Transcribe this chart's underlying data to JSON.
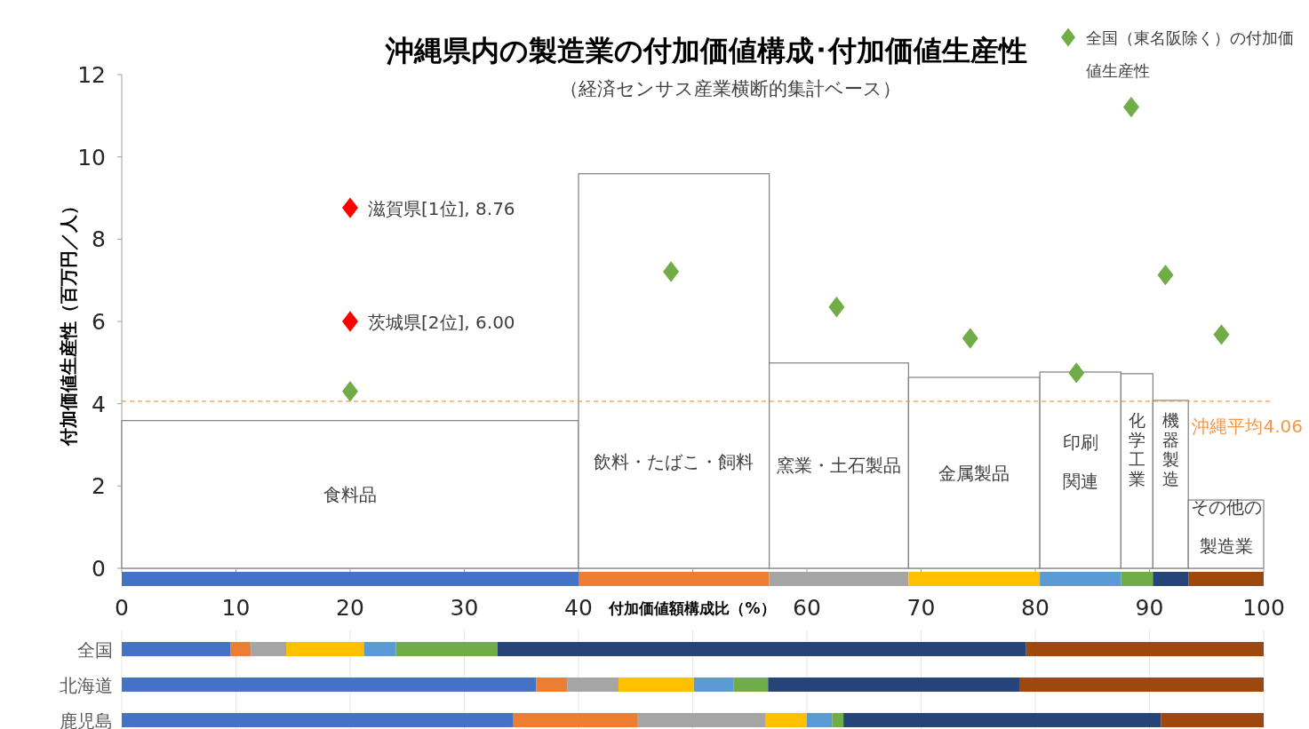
{
  "chart_data": [
    {
      "type": "histogram",
      "title": "沖縄県内の製造業の付加価値構成･付加価値生産性",
      "subtitle": "（経済センサス産業横断的集計ベース）",
      "ylabel": "付加価値生産性（百万円／人）",
      "bins": [
        0,
        40,
        56.7,
        68.9,
        80.4,
        87.5,
        90.3,
        93.4,
        100
      ],
      "values": [
        3.59,
        9.59,
        4.99,
        4.64,
        4.77,
        4.73,
        4.08,
        1.66
      ],
      "categories": [
        "食料品",
        "飲料・たばこ・飼料",
        "窯業・土石製品",
        "金属製品",
        "印刷関連",
        "化学工業",
        "機器製造",
        "その他の製造業"
      ],
      "color": "#ffffff",
      "series": [
        {
          "type": "scatter",
          "name": "全国（東名阪除く）の付加価値生産性",
          "color": "#70ad47",
          "x": [
            20,
            48.1,
            62.6,
            74.3,
            83.6,
            88.4,
            91.4,
            96.3
          ],
          "values": [
            4.3,
            7.21,
            6.35,
            5.59,
            4.75,
            11.21,
            7.13,
            5.68
          ]
        },
        {
          "type": "scatter",
          "color": "#ff0000",
          "x": [
            20,
            20
          ],
          "values": [
            8.76,
            6.0
          ],
          "value_labels": [
            "滋賀県[1位], 8.76",
            "茨城県[2位], 6.00"
          ]
        }
      ],
      "marker": "diamond",
      "ref_lines": [
        {
          "axis": "y",
          "value": 4.06,
          "label": "沖縄平均4.06",
          "color": "#f79646",
          "line_style": "dashed"
        }
      ],
      "xlim": [
        0,
        100
      ],
      "ylim": [
        0,
        12
      ],
      "yticks": [
        0,
        2,
        4,
        6,
        8,
        10,
        12
      ],
      "tick_labels": "y",
      "legend": "top right"
    },
    {
      "type": "bar",
      "orientation": "horizontal",
      "stacked": true,
      "xlabel": "付加価値額構成比（%）",
      "categories": [
        null
      ],
      "series": [
        {
          "color": "#4472c4",
          "values": [
            40
          ]
        },
        {
          "color": "#ed7d31",
          "values": [
            16.7
          ]
        },
        {
          "color": "#a5a5a5",
          "values": [
            12.2
          ]
        },
        {
          "color": "#ffc000",
          "values": [
            11.5
          ]
        },
        {
          "color": "#5b9bd5",
          "values": [
            7.1
          ]
        },
        {
          "color": "#70ad47",
          "values": [
            2.8
          ]
        },
        {
          "color": "#264478",
          "values": [
            3.1
          ]
        },
        {
          "color": "#9e480e",
          "values": [
            6.6
          ]
        }
      ],
      "xlim": [
        0,
        100
      ],
      "xticks": [
        0,
        10,
        20,
        30,
        40,
        {
          "value": 50,
          "label": null
        },
        60,
        70,
        80,
        90,
        100
      ],
      "tick_labels": "x"
    },
    {
      "type": "bar",
      "orientation": "horizontal",
      "stacked": true,
      "categories": [
        "全国",
        "北海道",
        "鹿児島"
      ],
      "series": [
        {
          "color": "#4472c4",
          "values": [
            9.5,
            36.3,
            34.3
          ]
        },
        {
          "color": "#ed7d31",
          "values": [
            1.8,
            2.7,
            10.9
          ]
        },
        {
          "color": "#a5a5a5",
          "values": [
            3.1,
            4.5,
            11.2
          ]
        },
        {
          "color": "#ffc000",
          "values": [
            6.8,
            6.6,
            3.6
          ]
        },
        {
          "color": "#5b9bd5",
          "values": [
            2.8,
            3.5,
            2.2
          ]
        },
        {
          "color": "#70ad47",
          "values": [
            8.9,
            3.0,
            1.0
          ]
        },
        {
          "color": "#264478",
          "values": [
            46.3,
            22.0,
            27.8
          ]
        },
        {
          "color": "#9e480e",
          "values": [
            20.8,
            21.4,
            9.0
          ]
        }
      ],
      "xlim": [
        0,
        100
      ],
      "xticks": [
        0,
        10,
        20,
        30,
        40,
        50,
        60,
        70,
        80,
        90,
        100
      ],
      "grid": "x",
      "tick_labels": "y"
    }
  ]
}
